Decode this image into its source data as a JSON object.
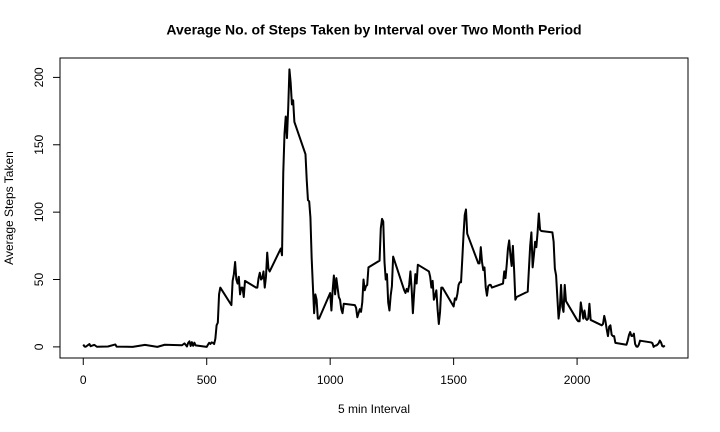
{
  "chart_data": {
    "type": "line",
    "title": "Average No. of Steps Taken by Interval over Two Month Period",
    "x_label": "5 min Interval",
    "y_label": "Average Steps Taken",
    "x": [
      0,
      5,
      10,
      25,
      30,
      45,
      55,
      100,
      130,
      135,
      200,
      250,
      300,
      330,
      400,
      410,
      420,
      425,
      430,
      435,
      440,
      445,
      450,
      455,
      500,
      505,
      510,
      515,
      520,
      525,
      530,
      535,
      540,
      545,
      550,
      555,
      600,
      605,
      610,
      615,
      620,
      625,
      630,
      635,
      640,
      645,
      650,
      655,
      700,
      705,
      710,
      715,
      720,
      725,
      730,
      735,
      740,
      745,
      750,
      755,
      800,
      805,
      810,
      815,
      820,
      825,
      830,
      835,
      840,
      845,
      850,
      855,
      900,
      905,
      910,
      915,
      920,
      925,
      930,
      935,
      940,
      945,
      950,
      955,
      1000,
      1005,
      1010,
      1015,
      1020,
      1025,
      1030,
      1035,
      1040,
      1045,
      1050,
      1055,
      1100,
      1105,
      1110,
      1115,
      1120,
      1125,
      1130,
      1135,
      1140,
      1145,
      1150,
      1155,
      1200,
      1205,
      1210,
      1215,
      1220,
      1225,
      1230,
      1235,
      1240,
      1245,
      1250,
      1255,
      1300,
      1305,
      1310,
      1315,
      1320,
      1325,
      1330,
      1335,
      1340,
      1345,
      1350,
      1355,
      1400,
      1405,
      1410,
      1415,
      1420,
      1425,
      1430,
      1435,
      1440,
      1445,
      1450,
      1455,
      1500,
      1505,
      1510,
      1515,
      1520,
      1525,
      1530,
      1535,
      1540,
      1545,
      1550,
      1555,
      1600,
      1605,
      1610,
      1615,
      1620,
      1625,
      1630,
      1635,
      1640,
      1645,
      1650,
      1655,
      1700,
      1705,
      1710,
      1715,
      1720,
      1725,
      1730,
      1735,
      1740,
      1745,
      1750,
      1755,
      1800,
      1805,
      1810,
      1815,
      1820,
      1825,
      1830,
      1835,
      1840,
      1845,
      1850,
      1855,
      1900,
      1905,
      1910,
      1915,
      1920,
      1925,
      1930,
      1935,
      1940,
      1945,
      1950,
      1955,
      2000,
      2005,
      2010,
      2015,
      2020,
      2025,
      2030,
      2035,
      2040,
      2045,
      2050,
      2055,
      2100,
      2105,
      2110,
      2115,
      2120,
      2125,
      2130,
      2135,
      2140,
      2145,
      2150,
      2155,
      2200,
      2205,
      2210,
      2215,
      2220,
      2225,
      2230,
      2235,
      2240,
      2245,
      2250,
      2255,
      2300,
      2305,
      2310,
      2315,
      2320,
      2325,
      2330,
      2335,
      2340,
      2345,
      2350,
      2355
    ],
    "series": [
      {
        "color": "#000000",
        "values": [
          1.7,
          0.3,
          0.1,
          2.1,
          0.5,
          1.5,
          0.1,
          0.3,
          1.8,
          0.2,
          0,
          1.5,
          0,
          1.6,
          1.2,
          2.6,
          0.3,
          3.0,
          4.1,
          0.7,
          3.5,
          0.8,
          3.1,
          1.1,
          0,
          1.6,
          3.0,
          2.2,
          3.3,
          3.0,
          2.1,
          6.1,
          16,
          18,
          39,
          44,
          31,
          49,
          54,
          63,
          50,
          47,
          52,
          39,
          44,
          44,
          37,
          49,
          44,
          44,
          51,
          55,
          50,
          51,
          56,
          44,
          52,
          70,
          58,
          56,
          73,
          68,
          129,
          158,
          171,
          155,
          177,
          206,
          196,
          180,
          183,
          167,
          143,
          124,
          109,
          108,
          96,
          66,
          45,
          25,
          39,
          35,
          21,
          21,
          40,
          27,
          42,
          53,
          39,
          51,
          44,
          37,
          35,
          28,
          25,
          32,
          31,
          29,
          22,
          25,
          28,
          26,
          33,
          50,
          42,
          45,
          46,
          59,
          64,
          88,
          95,
          93,
          63,
          50,
          54,
          33,
          27,
          38,
          45,
          67,
          42,
          40,
          43,
          41,
          46,
          56,
          43,
          25,
          40,
          54,
          47,
          61,
          56,
          52,
          44,
          49,
          35,
          38,
          42,
          28,
          17,
          26,
          44,
          44,
          30,
          36,
          35,
          39,
          46,
          48,
          48,
          65,
          83,
          98,
          102,
          84,
          62,
          62,
          74,
          63,
          57,
          59,
          44,
          38,
          45,
          46,
          46,
          44,
          47,
          56,
          51,
          61,
          73,
          79,
          68,
          60,
          75,
          57,
          35,
          37,
          41,
          58,
          75,
          85,
          59,
          68,
          78,
          74,
          85,
          99,
          87,
          86,
          85,
          78,
          58,
          53,
          37,
          21,
          28,
          46,
          30,
          26,
          46,
          34,
          20,
          19,
          19,
          33,
          27,
          21,
          27,
          21,
          20,
          21,
          32,
          20,
          16,
          17,
          23,
          19,
          13,
          8,
          15,
          16,
          9,
          8,
          8,
          3,
          1.6,
          4.6,
          8.7,
          11,
          8.1,
          8.2,
          9.8,
          2.2,
          0.3,
          0.1,
          1.6,
          4.6,
          3.3,
          2.8,
          0,
          0.8,
          1,
          1.6,
          2.6,
          4.7,
          3.3,
          0.6,
          0.2,
          1.1
        ]
      }
    ],
    "xlim": [
      -94.2,
      2449.2
    ],
    "ylim": [
      -8.25,
      214.4
    ],
    "xticks": [
      0,
      500,
      1000,
      1500,
      2000
    ],
    "yticks": [
      0,
      50,
      100,
      150,
      200
    ]
  }
}
